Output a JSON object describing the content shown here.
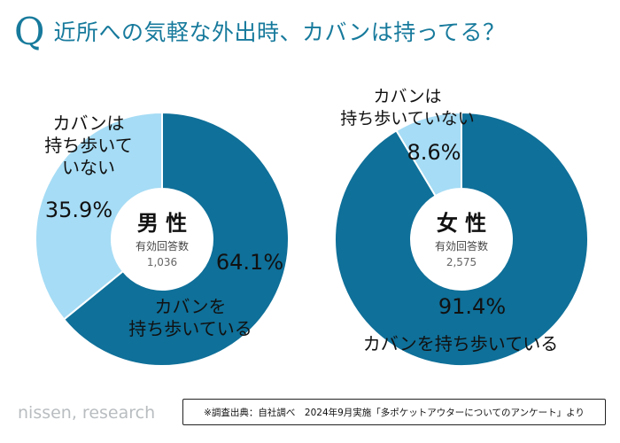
{
  "title": {
    "q_mark": "Q",
    "question": "近所への気軽な外出時、カバンは持ってる？"
  },
  "colors": {
    "accent": "#177a9c",
    "dark_slice": "#0f7099",
    "light_slice": "#a6dcf5",
    "brand_gray": "#b9bdc0"
  },
  "chart_data": [
    {
      "type": "pie",
      "variant": "donut",
      "gender_label": "男 性",
      "respondents_label": "有効回答数",
      "respondents": "1,036",
      "slices": [
        {
          "label_lines": [
            "カバンを",
            "持ち歩いている"
          ],
          "value": 64.1,
          "display": "64.1%",
          "color": "#0f7099"
        },
        {
          "label_lines": [
            "カバンは",
            "持ち歩いて",
            "いない"
          ],
          "value": 35.9,
          "display": "35.9%",
          "color": "#a6dcf5"
        }
      ]
    },
    {
      "type": "pie",
      "variant": "donut",
      "gender_label": "女 性",
      "respondents_label": "有効回答数",
      "respondents": "2,575",
      "slices": [
        {
          "label_lines": [
            "カバンを持ち歩いている"
          ],
          "value": 91.4,
          "display": "91.4%",
          "color": "#0f7099"
        },
        {
          "label_lines": [
            "カバンは",
            "持ち歩いていない"
          ],
          "value": 8.6,
          "display": "8.6%",
          "color": "#a6dcf5"
        }
      ]
    }
  ],
  "footer": {
    "brand": "nissen, research",
    "source": "※調査出典：自社調べ　2024年9月実施「多ポケットアウターについてのアンケート」より"
  }
}
